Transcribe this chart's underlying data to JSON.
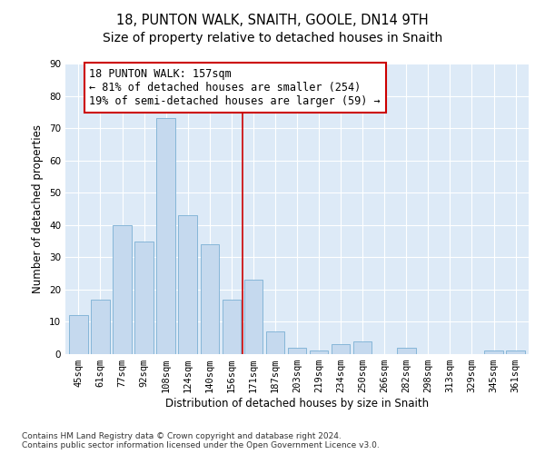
{
  "title": "18, PUNTON WALK, SNAITH, GOOLE, DN14 9TH",
  "subtitle": "Size of property relative to detached houses in Snaith",
  "xlabel": "Distribution of detached houses by size in Snaith",
  "ylabel": "Number of detached properties",
  "categories": [
    "45sqm",
    "61sqm",
    "77sqm",
    "92sqm",
    "108sqm",
    "124sqm",
    "140sqm",
    "156sqm",
    "171sqm",
    "187sqm",
    "203sqm",
    "219sqm",
    "234sqm",
    "250sqm",
    "266sqm",
    "282sqm",
    "298sqm",
    "313sqm",
    "329sqm",
    "345sqm",
    "361sqm"
  ],
  "values": [
    12,
    17,
    40,
    35,
    73,
    43,
    34,
    17,
    23,
    7,
    2,
    1,
    3,
    4,
    0,
    2,
    0,
    0,
    0,
    1,
    1
  ],
  "bar_color": "#c5d9ee",
  "bar_edge_color": "#7aafd4",
  "vline_x": 7.5,
  "vline_color": "#cc0000",
  "annotation_text": "18 PUNTON WALK: 157sqm\n← 81% of detached houses are smaller (254)\n19% of semi-detached houses are larger (59) →",
  "annotation_box_color": "#ffffff",
  "annotation_box_edge": "#cc0000",
  "ylim": [
    0,
    90
  ],
  "yticks": [
    0,
    10,
    20,
    30,
    40,
    50,
    60,
    70,
    80,
    90
  ],
  "bg_color": "#ffffff",
  "plot_bg": "#ddeaf7",
  "grid_color": "#ffffff",
  "footnote": "Contains HM Land Registry data © Crown copyright and database right 2024.\nContains public sector information licensed under the Open Government Licence v3.0.",
  "title_fontsize": 10.5,
  "xlabel_fontsize": 8.5,
  "ylabel_fontsize": 8.5,
  "tick_fontsize": 7.5,
  "annot_fontsize": 8.5,
  "footnote_fontsize": 6.5
}
